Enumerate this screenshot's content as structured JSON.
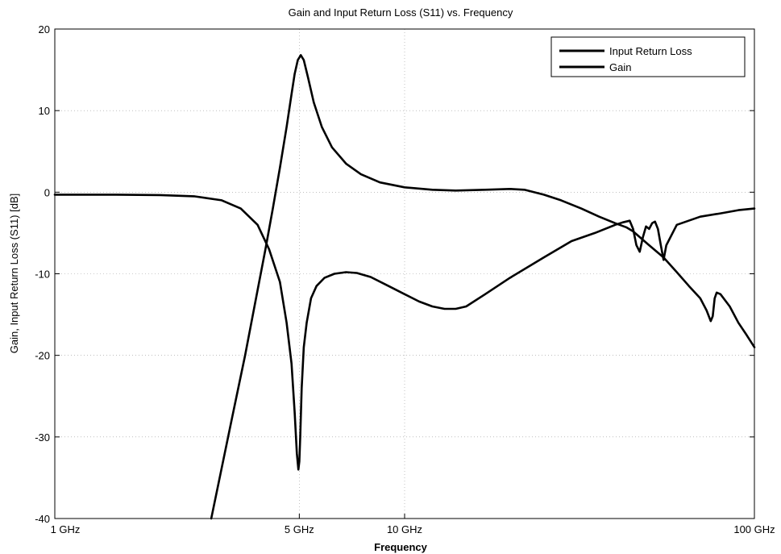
{
  "chart_data": {
    "type": "line",
    "title": "Gain and Input Return Loss (S11) vs. Frequency",
    "xlabel": "Frequency",
    "ylabel": "Gain, Input Return Loss (S11) [dB]",
    "x_scale": "log",
    "x_unit": "GHz",
    "xlim": [
      1,
      100
    ],
    "ylim": [
      -40,
      20
    ],
    "x_ticks": [
      {
        "value": 1,
        "label": "1 GHz"
      },
      {
        "value": 5,
        "label": "5 GHz"
      },
      {
        "value": 10,
        "label": "10 GHz"
      },
      {
        "value": 100,
        "label": "100 GHz"
      }
    ],
    "y_ticks": [
      20,
      10,
      0,
      -10,
      -20,
      -30,
      -40
    ],
    "grid": true,
    "legend_position": "top-right",
    "series": [
      {
        "name": "Input Return Loss",
        "color": "#000000",
        "x": [
          1,
          1.5,
          2,
          2.5,
          3,
          3.4,
          3.8,
          4.1,
          4.4,
          4.6,
          4.75,
          4.85,
          4.92,
          4.97,
          5.0,
          5.03,
          5.08,
          5.15,
          5.25,
          5.4,
          5.6,
          5.9,
          6.3,
          6.8,
          7.3,
          8,
          9,
          10,
          11,
          12,
          13,
          14,
          15,
          17,
          20,
          25,
          30,
          35,
          40,
          42,
          44,
          45,
          46,
          47,
          48,
          49,
          50,
          51,
          52,
          53,
          54,
          55,
          56,
          60,
          70,
          80,
          90,
          100
        ],
        "y": [
          -0.3,
          -0.3,
          -0.35,
          -0.5,
          -1,
          -2,
          -4,
          -7,
          -11,
          -16,
          -21,
          -27,
          -32,
          -34,
          -33,
          -30,
          -24,
          -19,
          -16,
          -13,
          -11.5,
          -10.5,
          -10,
          -9.8,
          -9.9,
          -10.4,
          -11.5,
          -12.5,
          -13.4,
          -14,
          -14.3,
          -14.3,
          -14,
          -12.5,
          -10.5,
          -8,
          -6,
          -5,
          -4,
          -3.7,
          -3.5,
          -4.5,
          -6.5,
          -7.3,
          -5.5,
          -4.2,
          -4.5,
          -3.8,
          -3.6,
          -4.5,
          -6.5,
          -8.3,
          -6.5,
          -4,
          -3,
          -2.6,
          -2.2,
          -2
        ]
      },
      {
        "name": "Gain",
        "color": "#000000",
        "x": [
          2.8,
          3.2,
          3.5,
          3.8,
          4.0,
          4.2,
          4.4,
          4.6,
          4.75,
          4.85,
          4.95,
          5.05,
          5.15,
          5.3,
          5.5,
          5.8,
          6.2,
          6.8,
          7.5,
          8.5,
          10,
          12,
          14,
          17,
          20,
          22,
          25,
          28,
          32,
          36,
          40,
          43,
          45,
          47,
          50,
          55,
          60,
          65,
          70,
          73,
          75,
          76,
          77,
          78,
          80,
          85,
          90,
          95,
          100
        ],
        "y": [
          -40,
          -28,
          -20,
          -12,
          -7,
          -2,
          3,
          8,
          12,
          14.5,
          16.2,
          16.8,
          16.2,
          14,
          11,
          8,
          5.5,
          3.5,
          2.2,
          1.2,
          0.6,
          0.3,
          0.2,
          0.3,
          0.4,
          0.3,
          -0.3,
          -1,
          -2,
          -3,
          -3.8,
          -4.3,
          -4.8,
          -5.5,
          -6.5,
          -8,
          -9.8,
          -11.5,
          -13,
          -14.5,
          -15.8,
          -15.2,
          -13,
          -12.3,
          -12.5,
          -14,
          -16,
          -17.5,
          -19
        ]
      }
    ]
  }
}
